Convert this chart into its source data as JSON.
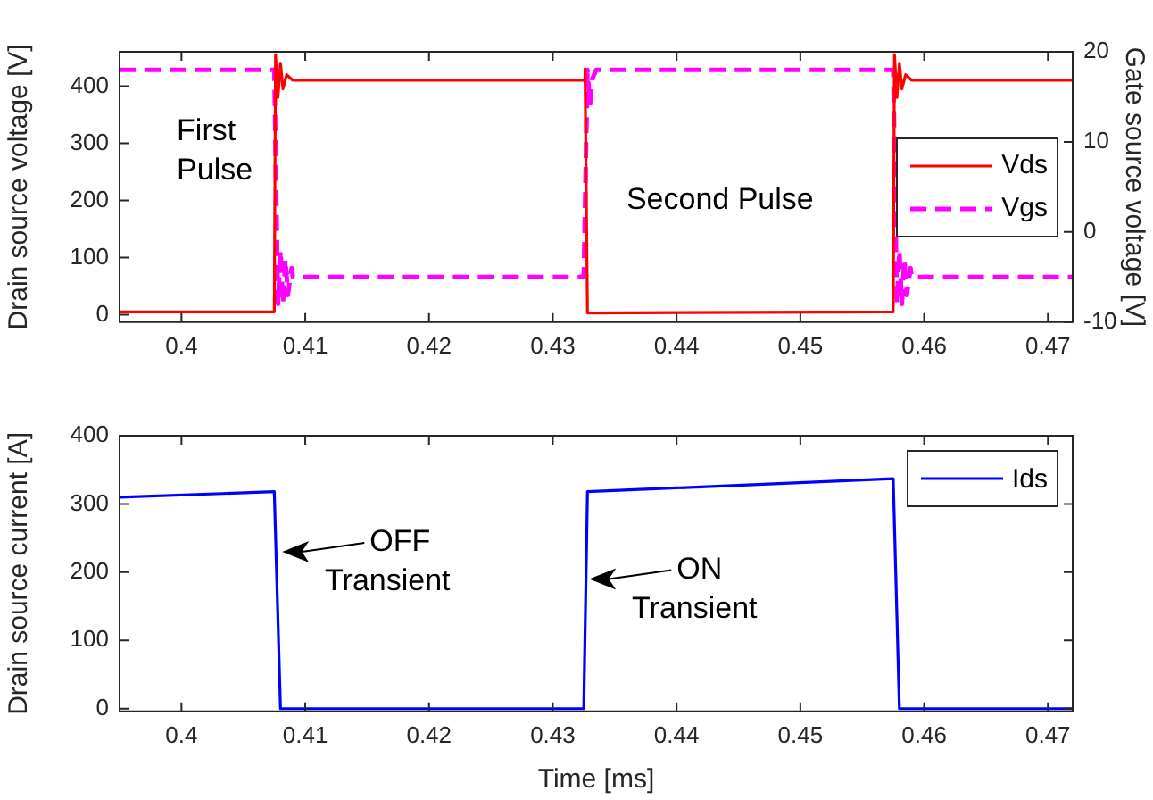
{
  "chart_data": [
    {
      "type": "line",
      "ylabel": "Drain source voltage [V]",
      "y2label": "Gate source voltage [V]",
      "xlim": [
        0.395,
        0.472
      ],
      "xticks": [
        {
          "value": 0.4,
          "label": "0.4"
        },
        0.41,
        0.42,
        0.43,
        0.44,
        0.45,
        0.46,
        0.47
      ],
      "ylim": [
        -13,
        460
      ],
      "yticks": [
        0,
        100,
        200,
        300,
        400
      ],
      "y2lim": [
        -10,
        20
      ],
      "y2ticks": [
        -10,
        0,
        10,
        20
      ],
      "legend": "right",
      "annotations": [
        "First\nPulse",
        "Second Pulse"
      ],
      "series": [
        {
          "name": "Vds",
          "color": "#ff0000",
          "line_style": "solid",
          "x": [
            0.395,
            0.4075,
            0.4076,
            0.4078,
            0.408,
            0.4082,
            0.4085,
            0.409,
            0.4325,
            0.4326,
            0.4328,
            0.4575,
            0.4576,
            0.4578,
            0.458,
            0.4582,
            0.4585,
            0.459,
            0.472
          ],
          "values": [
            5,
            5,
            455,
            380,
            440,
            395,
            420,
            410,
            410,
            430,
            3,
            5,
            455,
            380,
            440,
            395,
            420,
            410,
            410
          ]
        },
        {
          "name": "Vgs",
          "color": "#ff00ff",
          "line_style": "dashed",
          "axis": "y2",
          "x": [
            0.395,
            0.4075,
            0.4078,
            0.408,
            0.4082,
            0.4084,
            0.4086,
            0.4089,
            0.409,
            0.4325,
            0.4328,
            0.433,
            0.4332,
            0.4335,
            0.4575,
            0.4578,
            0.458,
            0.4582,
            0.4584,
            0.4586,
            0.4589,
            0.459,
            0.472
          ],
          "values": [
            18,
            18,
            -8,
            -2,
            -8,
            -3,
            -7,
            -4,
            -5,
            -5,
            18,
            14,
            17,
            18,
            18,
            -8,
            -2,
            -8,
            -3,
            -7,
            -4,
            -5,
            -5
          ]
        }
      ]
    },
    {
      "type": "line",
      "xlabel": "Time [ms]",
      "ylabel": "Drain source current [A]",
      "xlim": [
        0.395,
        0.472
      ],
      "xticks": [
        {
          "value": 0.4,
          "label": "0.4"
        },
        0.41,
        0.42,
        0.43,
        0.44,
        0.45,
        0.46,
        0.47
      ],
      "ylim": [
        -4,
        400
      ],
      "yticks": [
        0,
        100,
        200,
        300,
        400
      ],
      "legend": "top right",
      "annotations": [
        {
          "text": "OFF\nTransient",
          "x": 0.408,
          "y": 230
        },
        {
          "text": "ON\nTransient",
          "x": 0.4328,
          "y": 190
        }
      ],
      "series": [
        {
          "name": "Ids",
          "color": "#0000ff",
          "line_style": "solid",
          "x": [
            0.395,
            0.4075,
            0.408,
            0.4325,
            0.4328,
            0.4575,
            0.458,
            0.472
          ],
          "values": [
            310,
            318,
            0,
            0,
            318,
            337,
            0,
            0
          ]
        }
      ]
    }
  ]
}
